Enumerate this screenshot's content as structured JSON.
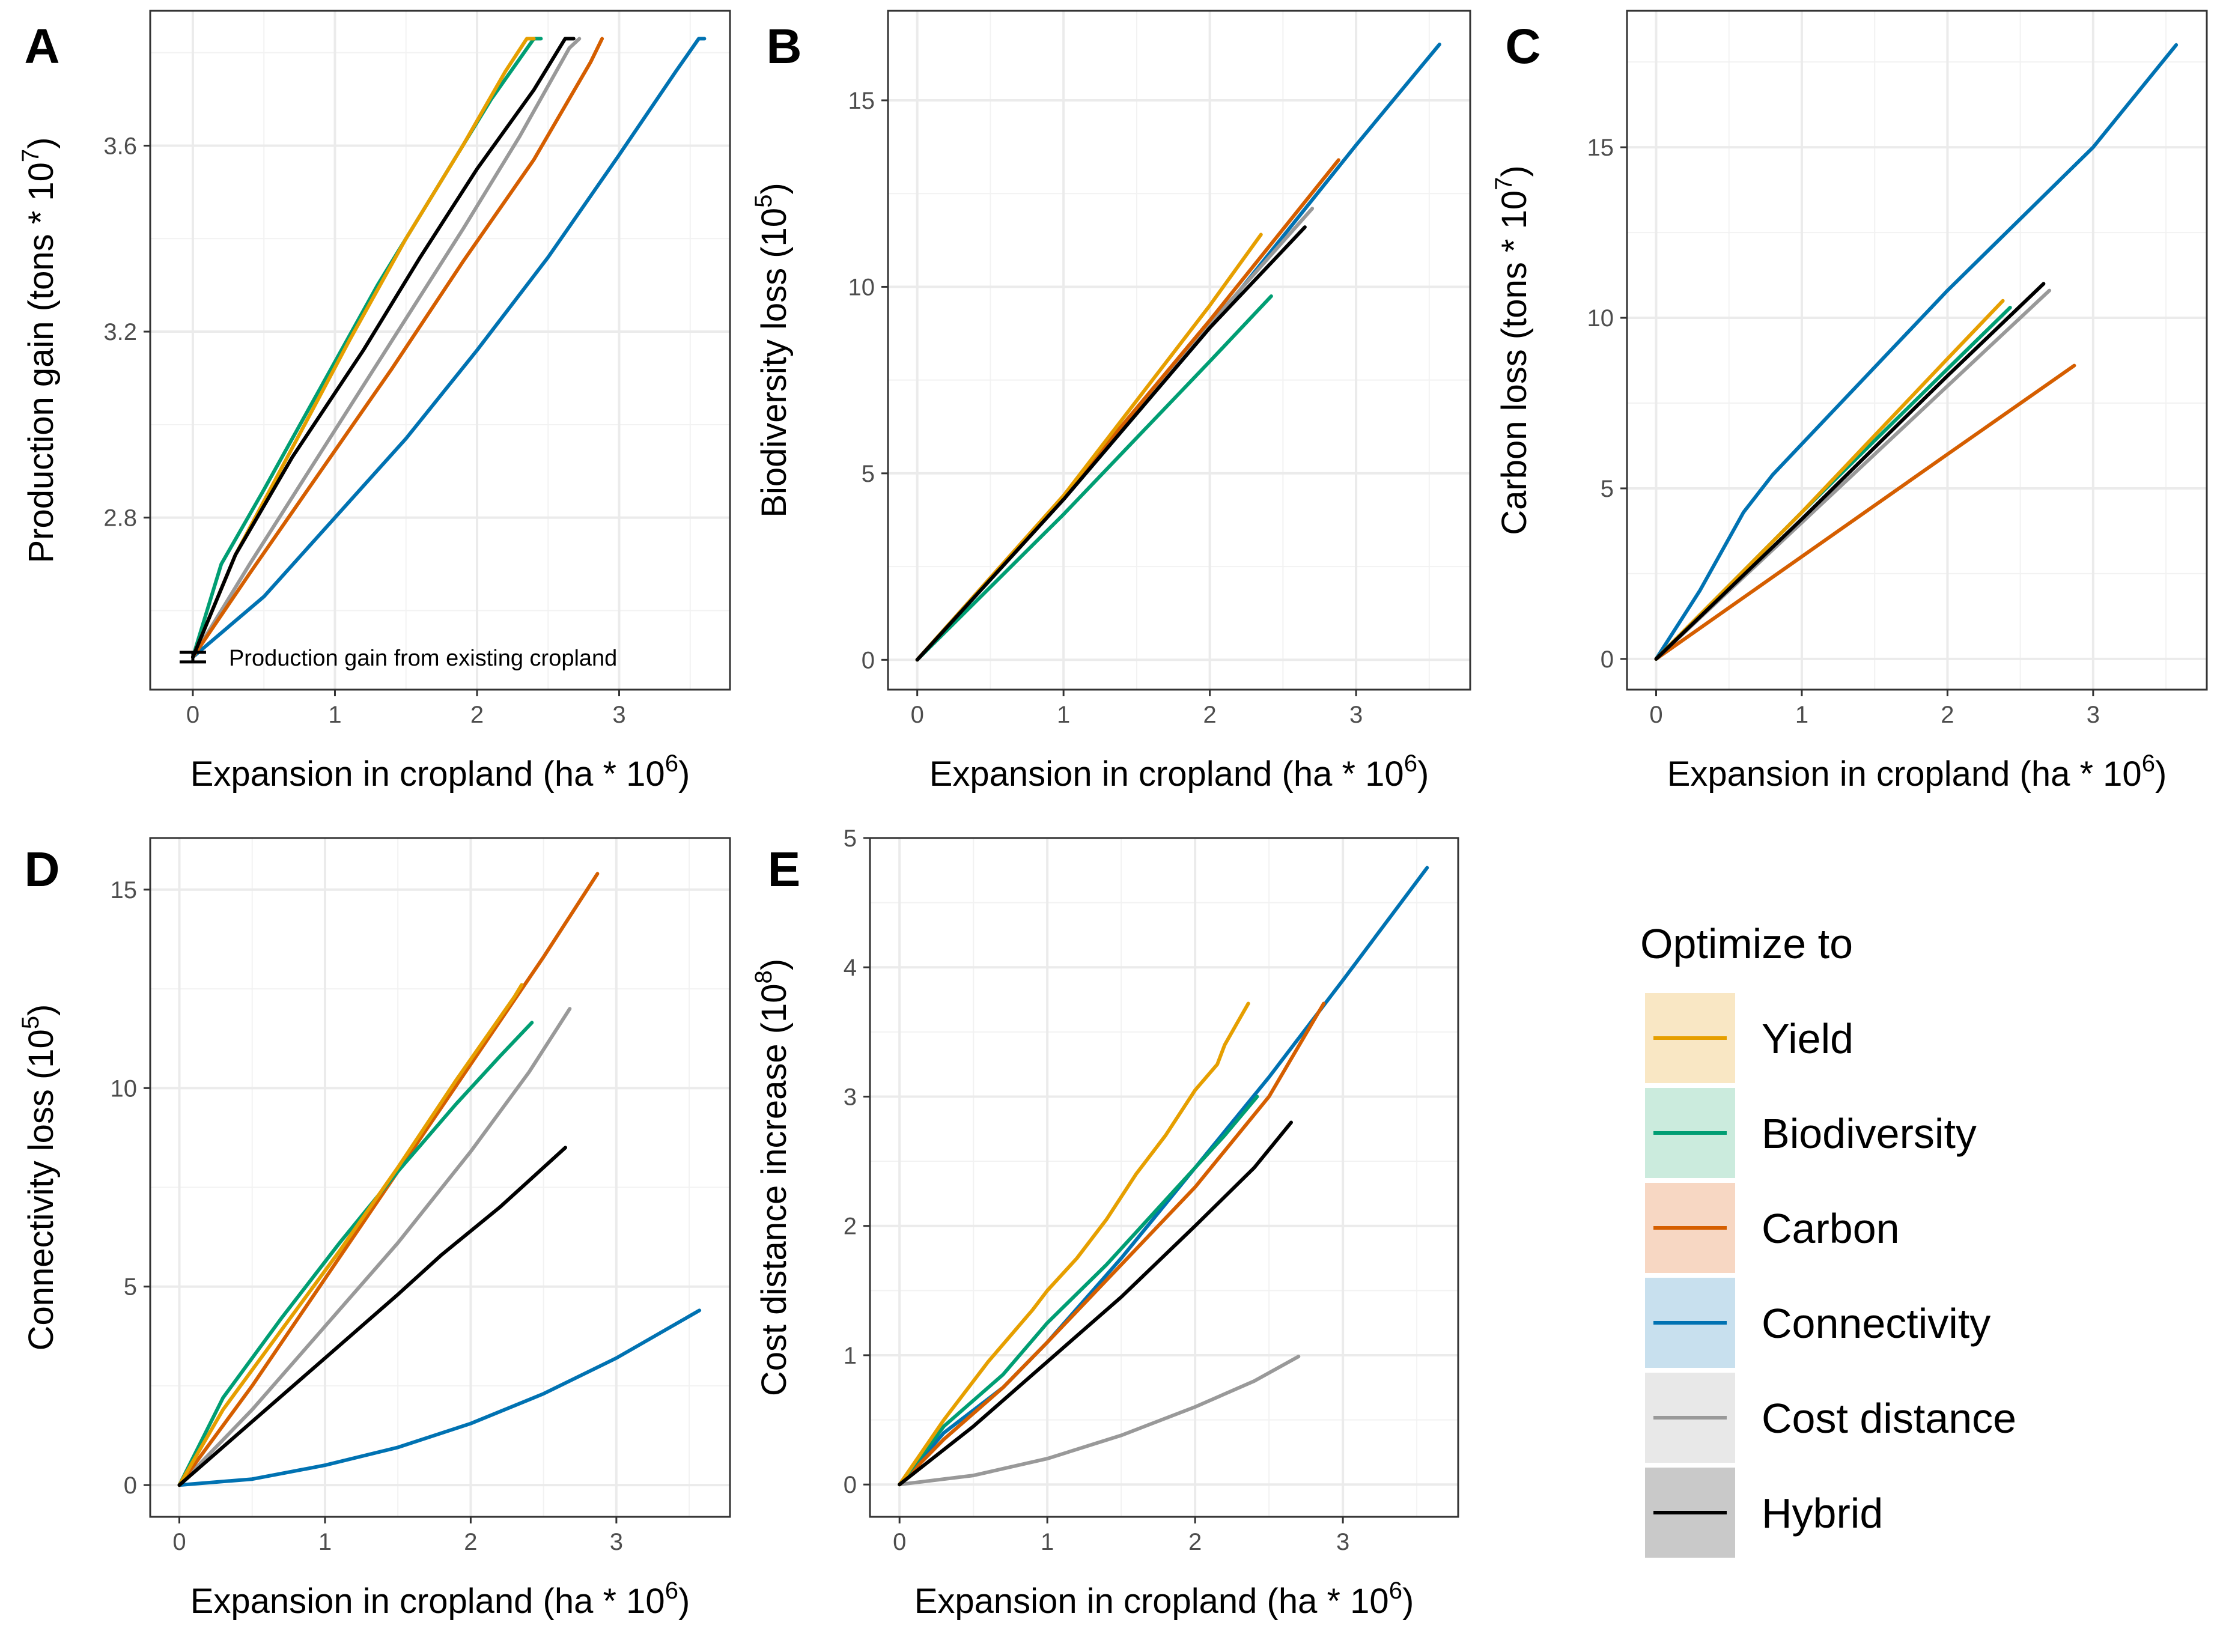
{
  "series_colors": {
    "Yield": "#E69F00",
    "Biodiversity": "#009E73",
    "Carbon": "#D55E00",
    "Connectivity": "#0072B2",
    "Cost distance": "#999999",
    "Hybrid": "#000000"
  },
  "legend": {
    "title": "Optimize to",
    "items": [
      {
        "name": "Yield",
        "fill": "#F9E7C4"
      },
      {
        "name": "Biodiversity",
        "fill": "#CBEBDD"
      },
      {
        "name": "Carbon",
        "fill": "#F7D7C3"
      },
      {
        "name": "Connectivity",
        "fill": "#C8E0EE"
      },
      {
        "name": "Cost distance",
        "fill": "#E8E8E8"
      },
      {
        "name": "Hybrid",
        "fill": "#C9C9C9"
      }
    ]
  },
  "chart_data": [
    {
      "panel": "A",
      "type": "line",
      "xlabel": "Expansion in cropland (ha * 10",
      "xlabel_sup": "6",
      "xlabel_end": ")",
      "ylabel": "Production gain (tons * 10",
      "ylabel_sup": "7",
      "ylabel_end": ")",
      "xlim": [
        -0.3,
        3.78
      ],
      "ylim": [
        2.43,
        3.89
      ],
      "xticks": [
        0,
        1,
        2,
        3
      ],
      "yticks": [
        2.8,
        3.2,
        3.6
      ],
      "ytick_labels": [
        "2.8",
        "3.2",
        "3.6"
      ],
      "annotation": "Production gain from existing cropland",
      "baseline_point": {
        "x": 0,
        "y": 2.5
      },
      "series": [
        {
          "name": "Yield",
          "x": [
            0,
            0.3,
            0.7,
            1.1,
            1.5,
            1.9,
            2.2,
            2.35,
            2.4
          ],
          "y": [
            2.5,
            2.72,
            2.95,
            3.18,
            3.4,
            3.6,
            3.76,
            3.83,
            3.83
          ]
        },
        {
          "name": "Biodiversity",
          "x": [
            0,
            0.2,
            0.5,
            0.9,
            1.3,
            1.7,
            2.1,
            2.4,
            2.45
          ],
          "y": [
            2.5,
            2.7,
            2.86,
            3.08,
            3.3,
            3.5,
            3.7,
            3.83,
            3.83
          ]
        },
        {
          "name": "Carbon",
          "x": [
            0,
            0.4,
            0.9,
            1.4,
            1.9,
            2.4,
            2.8,
            2.88
          ],
          "y": [
            2.5,
            2.68,
            2.9,
            3.12,
            3.35,
            3.57,
            3.78,
            3.83
          ]
        },
        {
          "name": "Connectivity",
          "x": [
            0,
            0.5,
            1.0,
            1.5,
            2.0,
            2.5,
            3.0,
            3.4,
            3.56,
            3.6
          ],
          "y": [
            2.5,
            2.63,
            2.8,
            2.97,
            3.16,
            3.36,
            3.58,
            3.76,
            3.83,
            3.83
          ]
        },
        {
          "name": "Cost distance",
          "x": [
            0,
            0.4,
            0.9,
            1.4,
            1.9,
            2.3,
            2.65,
            2.72
          ],
          "y": [
            2.5,
            2.7,
            2.94,
            3.18,
            3.42,
            3.62,
            3.81,
            3.83
          ]
        },
        {
          "name": "Hybrid",
          "x": [
            0,
            0.3,
            0.7,
            1.2,
            1.6,
            2.0,
            2.4,
            2.62,
            2.68
          ],
          "y": [
            2.5,
            2.72,
            2.93,
            3.16,
            3.36,
            3.55,
            3.72,
            3.83,
            3.83
          ]
        }
      ]
    },
    {
      "panel": "B",
      "type": "line",
      "xlabel": "Expansion in cropland (ha * 10",
      "xlabel_sup": "6",
      "xlabel_end": ")",
      "ylabel": "Biodiversity loss (10",
      "ylabel_sup": "5",
      "ylabel_end": ")",
      "xlim": [
        -0.2,
        3.78
      ],
      "ylim": [
        -0.8,
        17.4
      ],
      "xticks": [
        0,
        1,
        2,
        3
      ],
      "yticks": [
        0,
        5,
        10,
        15
      ],
      "ytick_labels": [
        "0",
        "5",
        "10",
        "15"
      ],
      "series": [
        {
          "name": "Yield",
          "x": [
            0,
            1.0,
            2.0,
            2.35
          ],
          "y": [
            0,
            4.4,
            9.5,
            11.4
          ]
        },
        {
          "name": "Biodiversity",
          "x": [
            0,
            1.0,
            2.0,
            2.42
          ],
          "y": [
            0,
            3.9,
            8.0,
            9.75
          ]
        },
        {
          "name": "Carbon",
          "x": [
            0,
            1.0,
            2.0,
            2.88
          ],
          "y": [
            0,
            4.4,
            9.1,
            13.4
          ]
        },
        {
          "name": "Connectivity",
          "x": [
            0,
            1.0,
            2.0,
            3.0,
            3.57
          ],
          "y": [
            0,
            4.3,
            8.9,
            13.8,
            16.5
          ]
        },
        {
          "name": "Cost distance",
          "x": [
            0,
            1.0,
            2.0,
            2.7
          ],
          "y": [
            0,
            4.35,
            9.0,
            12.1
          ]
        },
        {
          "name": "Hybrid",
          "x": [
            0,
            1.0,
            2.0,
            2.65
          ],
          "y": [
            0,
            4.3,
            8.9,
            11.6
          ]
        }
      ]
    },
    {
      "panel": "C",
      "type": "line",
      "xlabel": "Expansion in cropland (ha * 10",
      "xlabel_sup": "6",
      "xlabel_end": ")",
      "ylabel": "Carbon loss (tons * 10",
      "ylabel_sup": "7",
      "ylabel_end": ")",
      "xlim": [
        -0.2,
        3.78
      ],
      "ylim": [
        -0.9,
        19.0
      ],
      "xticks": [
        0,
        1,
        2,
        3
      ],
      "yticks": [
        0,
        5,
        10,
        15
      ],
      "ytick_labels": [
        "0",
        "5",
        "10",
        "15"
      ],
      "series": [
        {
          "name": "Yield",
          "x": [
            0,
            1.0,
            2.0,
            2.38
          ],
          "y": [
            0,
            4.3,
            8.8,
            10.5
          ]
        },
        {
          "name": "Biodiversity",
          "x": [
            0,
            1.0,
            2.0,
            2.43
          ],
          "y": [
            0,
            4.3,
            8.5,
            10.3
          ]
        },
        {
          "name": "Carbon",
          "x": [
            0,
            1.0,
            2.0,
            2.87
          ],
          "y": [
            0,
            3.0,
            6.0,
            8.6
          ]
        },
        {
          "name": "Connectivity",
          "x": [
            0,
            0.3,
            0.6,
            0.8,
            1.2,
            2.0,
            3.0,
            3.57
          ],
          "y": [
            0,
            2.0,
            4.3,
            5.4,
            7.2,
            10.8,
            15.0,
            18.0
          ]
        },
        {
          "name": "Cost distance",
          "x": [
            0,
            1.0,
            2.0,
            2.7
          ],
          "y": [
            0,
            4.0,
            8.0,
            10.8
          ]
        },
        {
          "name": "Hybrid",
          "x": [
            0,
            1.0,
            2.0,
            2.66
          ],
          "y": [
            0,
            4.1,
            8.3,
            11.0
          ]
        }
      ]
    },
    {
      "panel": "D",
      "type": "line",
      "xlabel": "Expansion in cropland (ha * 10",
      "xlabel_sup": "6",
      "xlabel_end": ")",
      "ylabel": "Connectivity loss (10",
      "ylabel_sup": "5",
      "ylabel_end": ")",
      "xlim": [
        -0.2,
        3.78
      ],
      "ylim": [
        -0.8,
        16.3
      ],
      "xticks": [
        0,
        1,
        2,
        3
      ],
      "yticks": [
        0,
        5,
        10,
        15
      ],
      "ytick_labels": [
        "0",
        "5",
        "10",
        "15"
      ],
      "series": [
        {
          "name": "Yield",
          "x": [
            0,
            0.3,
            0.7,
            1.1,
            1.5,
            1.9,
            2.3,
            2.35
          ],
          "y": [
            0,
            1.9,
            3.9,
            5.9,
            8.0,
            10.2,
            12.3,
            12.6
          ]
        },
        {
          "name": "Biodiversity",
          "x": [
            0,
            0.3,
            0.7,
            1.1,
            1.5,
            1.9,
            2.2,
            2.42
          ],
          "y": [
            0,
            2.2,
            4.2,
            6.1,
            7.9,
            9.6,
            10.8,
            11.65
          ]
        },
        {
          "name": "Carbon",
          "x": [
            0,
            0.5,
            1.0,
            1.5,
            2.0,
            2.5,
            2.87
          ],
          "y": [
            0,
            2.5,
            5.2,
            7.9,
            10.6,
            13.3,
            15.4
          ]
        },
        {
          "name": "Connectivity",
          "x": [
            0,
            0.5,
            1.0,
            1.5,
            2.0,
            2.5,
            3.0,
            3.57
          ],
          "y": [
            0,
            0.15,
            0.5,
            0.95,
            1.55,
            2.3,
            3.2,
            4.4
          ]
        },
        {
          "name": "Cost distance",
          "x": [
            0,
            0.5,
            1.0,
            1.5,
            2.0,
            2.4,
            2.68
          ],
          "y": [
            0,
            1.9,
            4.0,
            6.1,
            8.4,
            10.4,
            12.0
          ]
        },
        {
          "name": "Hybrid",
          "x": [
            0,
            0.5,
            1.0,
            1.5,
            1.8,
            2.2,
            2.65
          ],
          "y": [
            0,
            1.6,
            3.2,
            4.8,
            5.8,
            7.0,
            8.5
          ]
        }
      ]
    },
    {
      "panel": "E",
      "type": "line",
      "xlabel": "Expansion in cropland (ha * 10",
      "xlabel_sup": "6",
      "xlabel_end": ")",
      "ylabel": "Cost distance increase (10",
      "ylabel_sup": "8",
      "ylabel_end": ")",
      "xlim": [
        -0.2,
        3.78
      ],
      "ylim": [
        -0.25,
        5.0
      ],
      "xticks": [
        0,
        1,
        2,
        3
      ],
      "yticks": [
        0,
        1,
        2,
        3,
        4,
        5
      ],
      "ytick_labels": [
        "0",
        "1",
        "2",
        "3",
        "4",
        "5"
      ],
      "series": [
        {
          "name": "Yield",
          "x": [
            0,
            0.3,
            0.6,
            0.9,
            1.0,
            1.2,
            1.4,
            1.6,
            1.8,
            2.0,
            2.15,
            2.2,
            2.3,
            2.36
          ],
          "y": [
            0,
            0.5,
            0.95,
            1.35,
            1.5,
            1.75,
            2.05,
            2.4,
            2.7,
            3.05,
            3.25,
            3.4,
            3.6,
            3.72
          ]
        },
        {
          "name": "Biodiversity",
          "x": [
            0,
            0.3,
            0.7,
            1.0,
            1.4,
            1.8,
            2.2,
            2.42
          ],
          "y": [
            0,
            0.45,
            0.85,
            1.25,
            1.7,
            2.2,
            2.7,
            3.0
          ]
        },
        {
          "name": "Carbon",
          "x": [
            0,
            0.3,
            0.7,
            1.0,
            1.5,
            2.0,
            2.5,
            2.87
          ],
          "y": [
            0,
            0.35,
            0.75,
            1.1,
            1.7,
            2.3,
            3.0,
            3.72
          ]
        },
        {
          "name": "Connectivity",
          "x": [
            0,
            0.3,
            0.7,
            1.0,
            1.5,
            2.0,
            2.5,
            3.0,
            3.57
          ],
          "y": [
            0,
            0.4,
            0.75,
            1.1,
            1.75,
            2.45,
            3.15,
            3.9,
            4.77
          ]
        },
        {
          "name": "Cost distance",
          "x": [
            0,
            0.5,
            1.0,
            1.5,
            2.0,
            2.4,
            2.7
          ],
          "y": [
            0,
            0.07,
            0.2,
            0.38,
            0.6,
            0.8,
            0.99
          ]
        },
        {
          "name": "Hybrid",
          "x": [
            0,
            0.5,
            1.0,
            1.5,
            2.0,
            2.4,
            2.65
          ],
          "y": [
            0,
            0.45,
            0.95,
            1.45,
            2.0,
            2.45,
            2.8
          ]
        }
      ]
    }
  ]
}
